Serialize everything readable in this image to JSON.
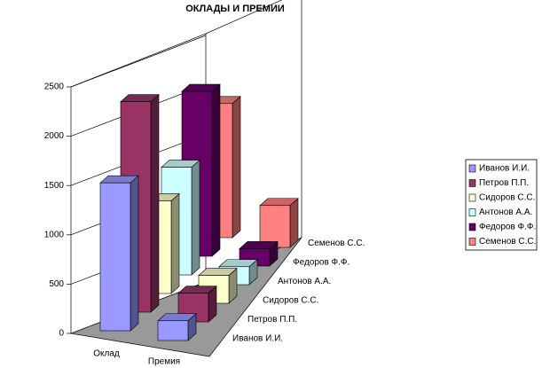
{
  "chart_data": {
    "type": "bar3d",
    "title": "ОКЛАДЫ И ПРЕМИИ",
    "categories": [
      "Оклад",
      "Премия"
    ],
    "series": [
      {
        "name": "Иванов И.И.",
        "color": "#9999ff",
        "values": [
          1500,
          200
        ]
      },
      {
        "name": "Петров П.П.",
        "color": "#993366",
        "values": [
          2200,
          300
        ]
      },
      {
        "name": "Сидоров С.С.",
        "color": "#ffffcc",
        "values": [
          1000,
          300
        ]
      },
      {
        "name": "Антонов А.А.",
        "color": "#ccffff",
        "values": [
          1200,
          200
        ]
      },
      {
        "name": "Федоров Ф.Ф.",
        "color": "#660066",
        "values": [
          1900,
          200
        ]
      },
      {
        "name": "Семенов С.С.",
        "color": "#ff8080",
        "values": [
          1600,
          500
        ]
      }
    ],
    "ylim": [
      0,
      2500
    ],
    "yticks": [
      0,
      500,
      1000,
      1500,
      2000,
      2500
    ],
    "grid": true,
    "legend": "right"
  }
}
